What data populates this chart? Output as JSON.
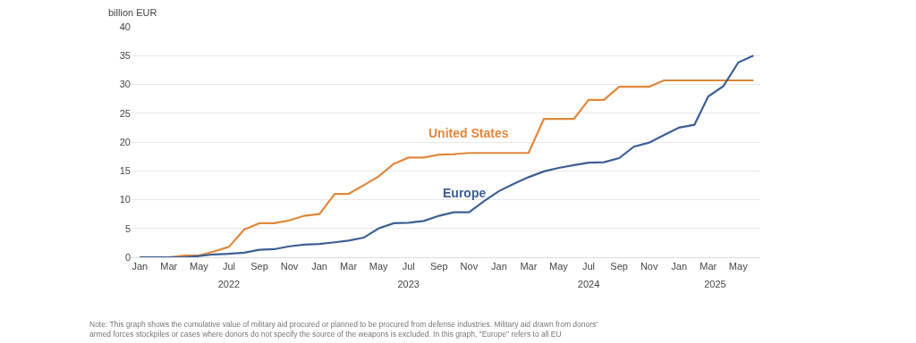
{
  "chart_data": {
    "type": "line",
    "ylabel": "billion EUR",
    "x": [
      "2022-01",
      "2022-02",
      "2022-03",
      "2022-04",
      "2022-05",
      "2022-06",
      "2022-07",
      "2022-08",
      "2022-09",
      "2022-10",
      "2022-11",
      "2022-12",
      "2023-01",
      "2023-02",
      "2023-03",
      "2023-04",
      "2023-05",
      "2023-06",
      "2023-07",
      "2023-08",
      "2023-09",
      "2023-10",
      "2023-11",
      "2023-12",
      "2024-01",
      "2024-02",
      "2024-03",
      "2024-04",
      "2024-05",
      "2024-06",
      "2024-07",
      "2024-08",
      "2024-09",
      "2024-10",
      "2024-11",
      "2024-12",
      "2025-01",
      "2025-02",
      "2025-03",
      "2025-04",
      "2025-05",
      "2025-06"
    ],
    "series": [
      {
        "name": "United States",
        "color": "#e0873a",
        "values": [
          0,
          0,
          0,
          0.3,
          0.3,
          1,
          1.8,
          4.8,
          5.9,
          5.9,
          6.4,
          7.2,
          7.5,
          11,
          11,
          12.5,
          14,
          16.2,
          17.3,
          17.3,
          17.8,
          17.9,
          18.1,
          18.1,
          18.1,
          18.1,
          18.1,
          24,
          24,
          24,
          27.3,
          27.3,
          29.6,
          29.6,
          29.6,
          30.7,
          30.7,
          30.7,
          30.7,
          30.7,
          30.7,
          30.7
        ]
      },
      {
        "name": "Europe",
        "color": "#3d5f95",
        "values": [
          0,
          0,
          0,
          0,
          0.2,
          0.5,
          0.6,
          0.8,
          1.3,
          1.4,
          1.9,
          2.2,
          2.3,
          2.6,
          2.9,
          3.4,
          5,
          5.9,
          6,
          6.3,
          7.2,
          7.8,
          7.8,
          9.7,
          11.5,
          12.8,
          13.9,
          14.9,
          15.5,
          16,
          16.4,
          16.5,
          17.2,
          19.2,
          19.9,
          21.2,
          22.5,
          23,
          27.9,
          29.7,
          33.8,
          35
        ]
      }
    ],
    "ylim": [
      0,
      40
    ],
    "yticks": [
      0,
      5,
      10,
      15,
      20,
      25,
      30,
      35,
      40
    ],
    "xlim": [
      "2021-12-15",
      "2025-06-15"
    ],
    "xticks": [
      {
        "value": "2022-01-01",
        "label": "Jan"
      },
      {
        "value": "2022-03-01",
        "label": "Mar"
      },
      {
        "value": "2022-05-01",
        "label": "May"
      },
      {
        "value": "2022-07-01",
        "label": "Jul"
      },
      {
        "value": "2022-09-01",
        "label": "Sep"
      },
      {
        "value": "2022-11-01",
        "label": "Nov"
      },
      {
        "value": "2023-01-01",
        "label": "Jan"
      },
      {
        "value": "2023-03-01",
        "label": "Mar"
      },
      {
        "value": "2023-05-01",
        "label": "May"
      },
      {
        "value": "2023-07-01",
        "label": "Jul"
      },
      {
        "value": "2023-09-01",
        "label": "Sep"
      },
      {
        "value": "2023-11-01",
        "label": "Nov"
      },
      {
        "value": "2024-01-01",
        "label": "Jan"
      },
      {
        "value": "2024-03-01",
        "label": "Mar"
      },
      {
        "value": "2024-05-01",
        "label": "May"
      },
      {
        "value": "2024-07-01",
        "label": "Jul"
      },
      {
        "value": "2024-09-01",
        "label": "Sep"
      },
      {
        "value": "2024-11-01",
        "label": "Nov"
      },
      {
        "value": "2025-01-01",
        "label": "Jan"
      },
      {
        "value": "2025-03-01",
        "label": "Mar"
      },
      {
        "value": "2025-05-01",
        "label": "May"
      }
    ],
    "x2lim": [
      "2021-12-15",
      "2025-06-15"
    ],
    "x2ticks": [
      {
        "value": "2022-07-01",
        "label": "2022"
      },
      {
        "value": "2023-07-01",
        "label": "2023"
      },
      {
        "value": "2024-07-01",
        "label": "2024"
      },
      {
        "value": "2025-03-15",
        "label": "2025"
      }
    ],
    "grid": "y",
    "legend": false,
    "marker": "none",
    "line_style": "solid",
    "annotations": [
      "Note: This graph shows the cumulative value of military aid procured or planned to be procured from defense industries. Military aid drawn from donors' armed forces stockpiles or cases where donors do not specify the source of the weapons is excluded. In this graph, \"Europe\" refers to all EU"
    ]
  }
}
